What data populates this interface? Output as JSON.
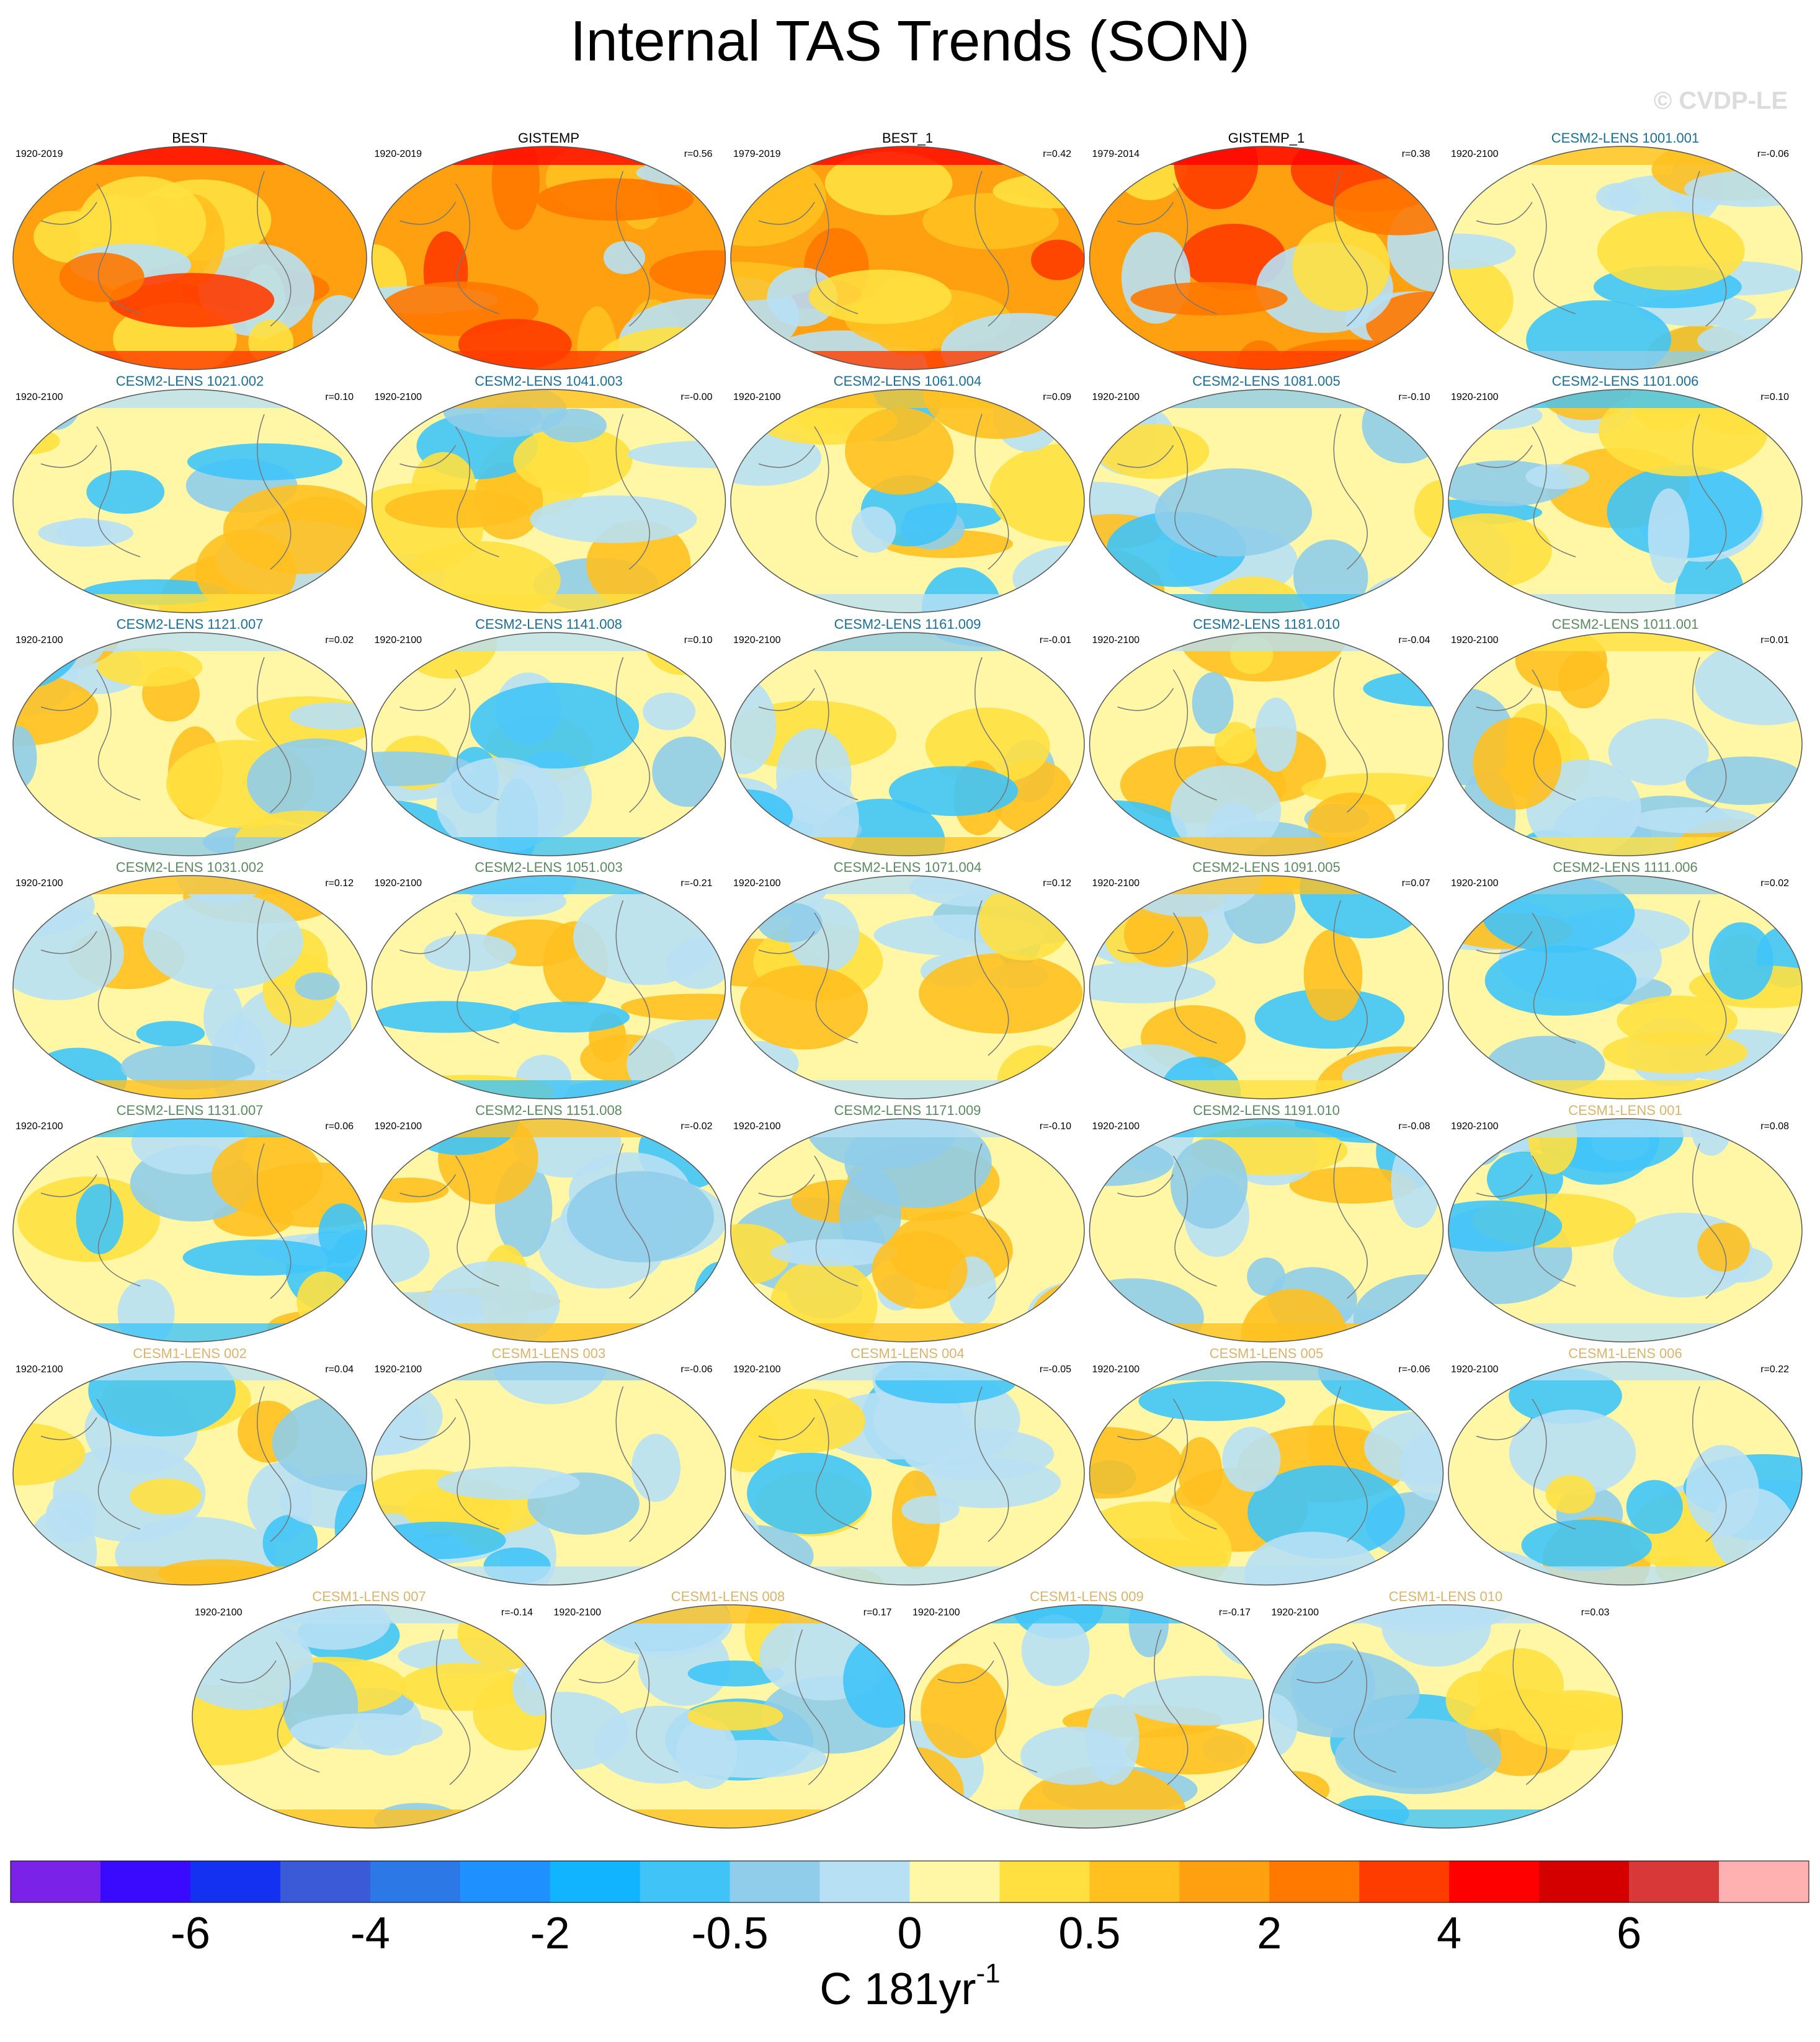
{
  "title": "Internal TAS Trends (SON)",
  "watermark": "© CVDP-LE",
  "panels": [
    {
      "title": "BEST",
      "period": "1920-2019",
      "r": null,
      "title_color": "#000000"
    },
    {
      "title": "GISTEMP",
      "period": "1920-2019",
      "r": "r=0.56",
      "title_color": "#000000"
    },
    {
      "title": "BEST_1",
      "period": "1979-2019",
      "r": "r=0.42",
      "title_color": "#000000"
    },
    {
      "title": "GISTEMP_1",
      "period": "1979-2014",
      "r": "r=0.38",
      "title_color": "#000000"
    },
    {
      "title": "CESM2-LENS 1001.001",
      "period": "1920-2100",
      "r": "r=-0.06",
      "title_color": "#1c6e94"
    },
    {
      "title": "CESM2-LENS 1021.002",
      "period": "1920-2100",
      "r": "r=0.10",
      "title_color": "#1c6e94"
    },
    {
      "title": "CESM2-LENS 1041.003",
      "period": "1920-2100",
      "r": "r=-0.00",
      "title_color": "#1c6e94"
    },
    {
      "title": "CESM2-LENS 1061.004",
      "period": "1920-2100",
      "r": "r=0.09",
      "title_color": "#1c6e94"
    },
    {
      "title": "CESM2-LENS 1081.005",
      "period": "1920-2100",
      "r": "r=-0.10",
      "title_color": "#1c6e94"
    },
    {
      "title": "CESM2-LENS 1101.006",
      "period": "1920-2100",
      "r": "r=0.10",
      "title_color": "#1c6e94"
    },
    {
      "title": "CESM2-LENS 1121.007",
      "period": "1920-2100",
      "r": "r=0.02",
      "title_color": "#1c6e94"
    },
    {
      "title": "CESM2-LENS 1141.008",
      "period": "1920-2100",
      "r": "r=0.10",
      "title_color": "#1c6e94"
    },
    {
      "title": "CESM2-LENS 1161.009",
      "period": "1920-2100",
      "r": "r=-0.01",
      "title_color": "#1c6e94"
    },
    {
      "title": "CESM2-LENS 1181.010",
      "period": "1920-2100",
      "r": "r=-0.04",
      "title_color": "#1c6e94"
    },
    {
      "title": "CESM2-LENS 1011.001",
      "period": "1920-2100",
      "r": "r=0.01",
      "title_color": "#5b8a62"
    },
    {
      "title": "CESM2-LENS 1031.002",
      "period": "1920-2100",
      "r": "r=0.12",
      "title_color": "#5b8a62"
    },
    {
      "title": "CESM2-LENS 1051.003",
      "period": "1920-2100",
      "r": "r=-0.21",
      "title_color": "#5b8a62"
    },
    {
      "title": "CESM2-LENS 1071.004",
      "period": "1920-2100",
      "r": "r=0.12",
      "title_color": "#5b8a62"
    },
    {
      "title": "CESM2-LENS 1091.005",
      "period": "1920-2100",
      "r": "r=0.07",
      "title_color": "#5b8a62"
    },
    {
      "title": "CESM2-LENS 1111.006",
      "period": "1920-2100",
      "r": "r=0.02",
      "title_color": "#5b8a62"
    },
    {
      "title": "CESM2-LENS 1131.007",
      "period": "1920-2100",
      "r": "r=0.06",
      "title_color": "#5b8a62"
    },
    {
      "title": "CESM2-LENS 1151.008",
      "period": "1920-2100",
      "r": "r=-0.02",
      "title_color": "#5b8a62"
    },
    {
      "title": "CESM2-LENS 1171.009",
      "period": "1920-2100",
      "r": "r=-0.10",
      "title_color": "#5b8a62"
    },
    {
      "title": "CESM2-LENS 1191.010",
      "period": "1920-2100",
      "r": "r=-0.08",
      "title_color": "#5b8a62"
    },
    {
      "title": "CESM1-LENS 001",
      "period": "1920-2100",
      "r": "r=0.08",
      "title_color": "#d9b46e"
    },
    {
      "title": "CESM1-LENS 002",
      "period": "1920-2100",
      "r": "r=0.04",
      "title_color": "#d9b46e"
    },
    {
      "title": "CESM1-LENS 003",
      "period": "1920-2100",
      "r": "r=-0.06",
      "title_color": "#d9b46e"
    },
    {
      "title": "CESM1-LENS 004",
      "period": "1920-2100",
      "r": "r=-0.05",
      "title_color": "#d9b46e"
    },
    {
      "title": "CESM1-LENS 005",
      "period": "1920-2100",
      "r": "r=-0.06",
      "title_color": "#d9b46e"
    },
    {
      "title": "CESM1-LENS 006",
      "period": "1920-2100",
      "r": "r=0.22",
      "title_color": "#d9b46e"
    },
    {
      "title": "CESM1-LENS 007",
      "period": "1920-2100",
      "r": "r=-0.14",
      "title_color": "#d9b46e"
    },
    {
      "title": "CESM1-LENS 008",
      "period": "1920-2100",
      "r": "r=0.17",
      "title_color": "#d9b46e"
    },
    {
      "title": "CESM1-LENS 009",
      "period": "1920-2100",
      "r": "r=-0.17",
      "title_color": "#d9b46e"
    },
    {
      "title": "CESM1-LENS 010",
      "period": "1920-2100",
      "r": "r=0.03",
      "title_color": "#d9b46e"
    }
  ],
  "colorbar": {
    "colors": [
      "#7b22e8",
      "#3a0aff",
      "#1430f0",
      "#3a5ad8",
      "#2c78e6",
      "#1e90ff",
      "#10b4ff",
      "#40c4f8",
      "#90cdea",
      "#b8e0f4",
      "#fff7a6",
      "#ffe040",
      "#ffc020",
      "#ffa010",
      "#ff7800",
      "#ff3c00",
      "#ff0000",
      "#d40000",
      "#d83838",
      "#ffb0b0"
    ],
    "labels": [
      "-6",
      "-4",
      "-2",
      "-0.5",
      "0",
      "0.5",
      "2",
      "4",
      "6"
    ],
    "unit": "C 181yr",
    "unit_sup": "-1"
  }
}
